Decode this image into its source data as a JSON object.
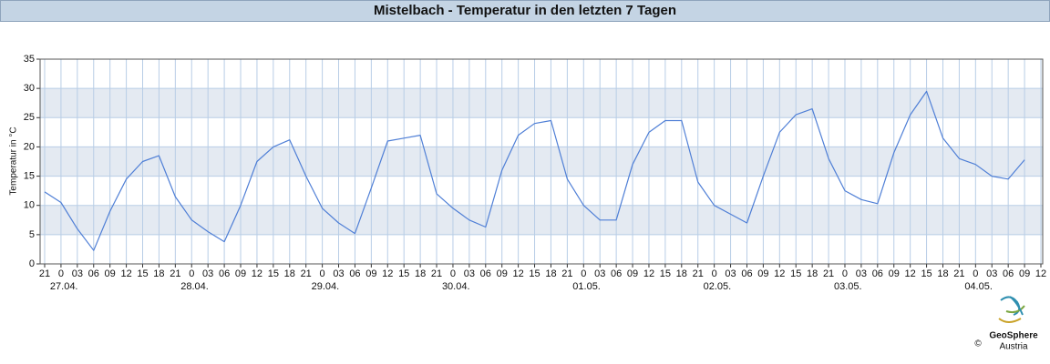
{
  "chart_data": {
    "type": "line",
    "title": "Mistelbach - Temperatur in den letzten 7 Tagen",
    "y_label": "Temperatur in °C",
    "categories": [
      "21",
      "0",
      "03",
      "06",
      "09",
      "12",
      "15",
      "18",
      "21",
      "0",
      "03",
      "06",
      "09",
      "12",
      "15",
      "18",
      "21",
      "0",
      "03",
      "06",
      "09",
      "12",
      "15",
      "18",
      "21",
      "0",
      "03",
      "06",
      "09",
      "12",
      "15",
      "18",
      "21",
      "0",
      "03",
      "06",
      "09",
      "12",
      "15",
      "18",
      "21",
      "0",
      "03",
      "06",
      "09",
      "12",
      "15",
      "18",
      "21",
      "0",
      "03",
      "06",
      "09",
      "12",
      "15",
      "18",
      "21",
      "0",
      "03",
      "06",
      "09",
      "12"
    ],
    "date_labels": [
      null,
      "27.04.",
      null,
      null,
      null,
      null,
      null,
      null,
      null,
      "28.04.",
      null,
      null,
      null,
      null,
      null,
      null,
      null,
      "29.04.",
      null,
      null,
      null,
      null,
      null,
      null,
      null,
      "30.04.",
      null,
      null,
      null,
      null,
      null,
      null,
      null,
      "01.05.",
      null,
      null,
      null,
      null,
      null,
      null,
      null,
      "02.05.",
      null,
      null,
      null,
      null,
      null,
      null,
      null,
      "03.05.",
      null,
      null,
      null,
      null,
      null,
      null,
      null,
      "04.05.",
      null,
      null,
      null,
      null
    ],
    "series": [
      {
        "name": "Temperatur",
        "color": "#4f7fd6",
        "values": [
          12.3,
          10.5,
          6.0,
          2.3,
          9,
          14.5,
          17.5,
          18.5,
          11.5,
          7.5,
          5.5,
          3.8,
          10,
          17.5,
          20,
          21.2,
          15,
          9.5,
          7,
          5.2,
          13,
          21,
          21.5,
          22,
          12,
          9.5,
          7.5,
          6.3,
          16,
          22,
          24,
          24.5,
          14.5,
          10,
          7.5,
          7.5,
          17,
          22.5,
          24.5,
          24.5,
          14,
          10,
          8.5,
          7,
          15,
          22.5,
          25.5,
          26.5,
          18,
          12.5,
          11,
          10.3,
          19,
          25.5,
          29.5,
          21.5,
          18,
          17,
          15,
          14.5,
          17.8,
          null
        ]
      }
    ],
    "ylim": [
      0,
      35
    ],
    "yticks": [
      0,
      5,
      10,
      15,
      20,
      25,
      30,
      35
    ],
    "grid": true,
    "logo": {
      "name": "GeoSphere",
      "sub": "Austria",
      "copyright": "©"
    }
  }
}
